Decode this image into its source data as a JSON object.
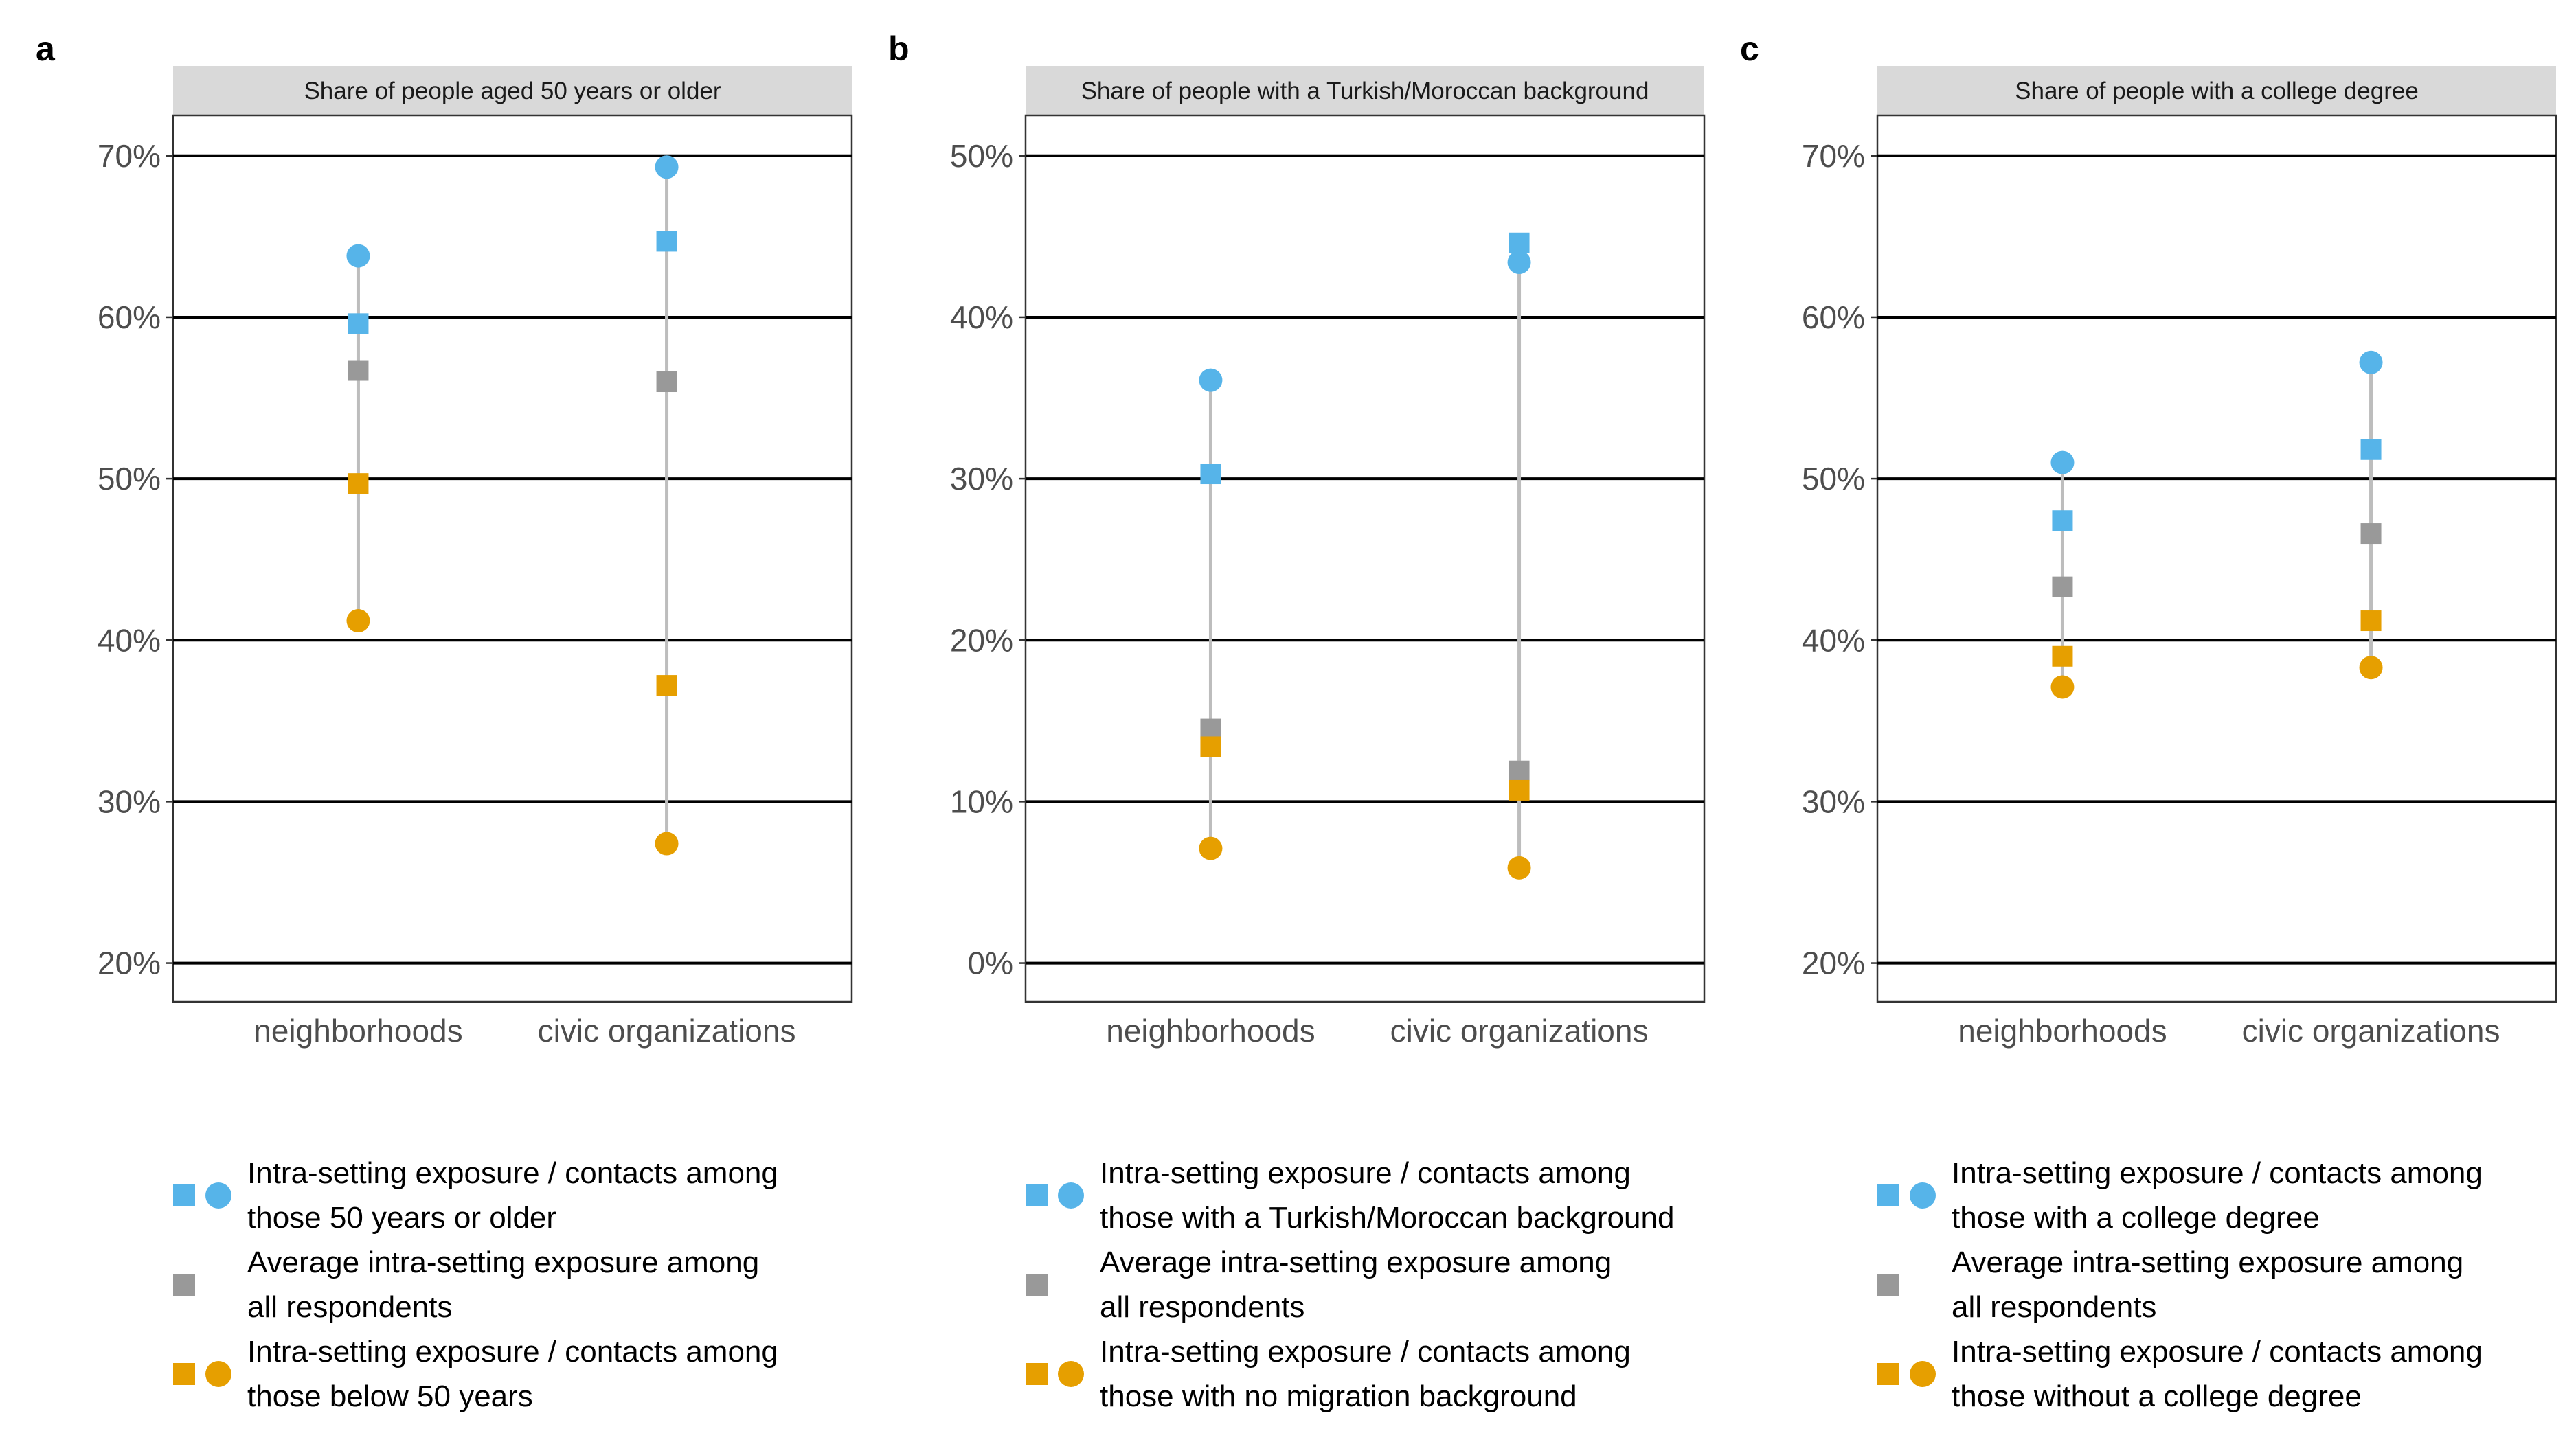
{
  "chart_data": [
    {
      "type": "scatter",
      "panel_label": "a",
      "title": "Share of people aged 50 years or older",
      "categories": [
        "neighborhoods",
        "civic organizations"
      ],
      "ylim": [
        17.6,
        72.5
      ],
      "yticks": [
        20,
        30,
        40,
        50,
        60,
        70
      ],
      "ytick_labels": [
        "20%",
        "30%",
        "40%",
        "50%",
        "60%",
        "70%"
      ],
      "grid": true,
      "series": [
        {
          "key": "group_contacts",
          "shape": "circle",
          "color": "#56B4E9",
          "values": [
            63.8,
            69.3
          ]
        },
        {
          "key": "group_exposure",
          "shape": "square",
          "color": "#56B4E9",
          "values": [
            59.6,
            64.7
          ]
        },
        {
          "key": "average",
          "shape": "square",
          "color": "#999999",
          "values": [
            56.7,
            56.0
          ]
        },
        {
          "key": "other_exposure",
          "shape": "square",
          "color": "#E69F00",
          "values": [
            49.7,
            37.2
          ]
        },
        {
          "key": "other_contacts",
          "shape": "circle",
          "color": "#E69F00",
          "values": [
            41.2,
            27.4
          ]
        }
      ],
      "legend": [
        {
          "lines": [
            "Intra-setting exposure / contacts among",
            "those 50 years or older"
          ],
          "color": "#56B4E9",
          "shapes": [
            "square",
            "circle"
          ]
        },
        {
          "lines": [
            "Average intra-setting exposure among",
            "all respondents"
          ],
          "color": "#999999",
          "shapes": [
            "square"
          ]
        },
        {
          "lines": [
            "Intra-setting exposure / contacts among",
            "those below 50 years"
          ],
          "color": "#E69F00",
          "shapes": [
            "square",
            "circle"
          ]
        }
      ]
    },
    {
      "type": "scatter",
      "panel_label": "b",
      "title": "Share of people with a Turkish/Moroccan background",
      "categories": [
        "neighborhoods",
        "civic organizations"
      ],
      "ylim": [
        -2.4,
        52.5
      ],
      "yticks": [
        0,
        10,
        20,
        30,
        40,
        50
      ],
      "ytick_labels": [
        "0%",
        "10%",
        "20%",
        "30%",
        "40%",
        "50%"
      ],
      "grid": true,
      "series": [
        {
          "key": "group_contacts",
          "shape": "circle",
          "color": "#56B4E9",
          "values": [
            36.1,
            43.4
          ]
        },
        {
          "key": "group_exposure",
          "shape": "square",
          "color": "#56B4E9",
          "values": [
            30.3,
            44.6
          ]
        },
        {
          "key": "average",
          "shape": "square",
          "color": "#999999",
          "values": [
            14.5,
            11.9
          ]
        },
        {
          "key": "other_exposure",
          "shape": "square",
          "color": "#E69F00",
          "values": [
            13.4,
            10.7
          ]
        },
        {
          "key": "other_contacts",
          "shape": "circle",
          "color": "#E69F00",
          "values": [
            7.1,
            5.9
          ]
        }
      ],
      "legend": [
        {
          "lines": [
            "Intra-setting exposure / contacts among",
            "those with a Turkish/Moroccan background"
          ],
          "color": "#56B4E9",
          "shapes": [
            "square",
            "circle"
          ]
        },
        {
          "lines": [
            "Average intra-setting exposure among",
            "all respondents"
          ],
          "color": "#999999",
          "shapes": [
            "square"
          ]
        },
        {
          "lines": [
            "Intra-setting exposure / contacts among",
            "those with no migration background"
          ],
          "color": "#E69F00",
          "shapes": [
            "square",
            "circle"
          ]
        }
      ]
    },
    {
      "type": "scatter",
      "panel_label": "c",
      "title": "Share of people with a college degree",
      "categories": [
        "neighborhoods",
        "civic organizations"
      ],
      "ylim": [
        17.6,
        72.5
      ],
      "yticks": [
        20,
        30,
        40,
        50,
        60,
        70
      ],
      "ytick_labels": [
        "20%",
        "30%",
        "40%",
        "50%",
        "60%",
        "70%"
      ],
      "grid": true,
      "series": [
        {
          "key": "group_contacts",
          "shape": "circle",
          "color": "#56B4E9",
          "values": [
            51.0,
            57.2
          ]
        },
        {
          "key": "group_exposure",
          "shape": "square",
          "color": "#56B4E9",
          "values": [
            47.4,
            51.8
          ]
        },
        {
          "key": "average",
          "shape": "square",
          "color": "#999999",
          "values": [
            43.3,
            46.6
          ]
        },
        {
          "key": "other_exposure",
          "shape": "square",
          "color": "#E69F00",
          "values": [
            39.0,
            41.2
          ]
        },
        {
          "key": "other_contacts",
          "shape": "circle",
          "color": "#E69F00",
          "values": [
            37.1,
            38.3
          ]
        }
      ],
      "legend": [
        {
          "lines": [
            "Intra-setting exposure / contacts among",
            "those with a college degree"
          ],
          "color": "#56B4E9",
          "shapes": [
            "square",
            "circle"
          ]
        },
        {
          "lines": [
            "Average intra-setting exposure among",
            "all respondents"
          ],
          "color": "#999999",
          "shapes": [
            "square"
          ]
        },
        {
          "lines": [
            "Intra-setting exposure / contacts among",
            "those without a college degree"
          ],
          "color": "#E69F00",
          "shapes": [
            "square",
            "circle"
          ]
        }
      ]
    }
  ]
}
